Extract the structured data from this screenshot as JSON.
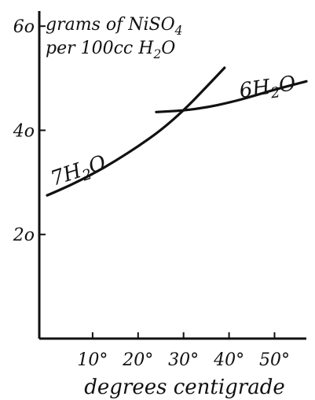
{
  "colors": {
    "ink": "#111111",
    "paper": "#ffffff"
  },
  "chart_data": {
    "type": "line",
    "title_line1": "grams of NiSO4",
    "title_line2": "per 100cc H2O",
    "xlabel": "degrees centigrade",
    "ylabel": "",
    "xlim": [
      0,
      57
    ],
    "ylim": [
      0,
      62
    ],
    "grid": false,
    "x_ticks": [
      10,
      20,
      30,
      40,
      50
    ],
    "x_tick_labels": [
      "10°",
      "20°",
      "30°",
      "40°",
      "50°"
    ],
    "y_ticks": [
      20,
      40,
      60
    ],
    "y_tick_labels": [
      "2o",
      "4o",
      "6o"
    ],
    "series": [
      {
        "name": "7H2O",
        "x": [
          0,
          5,
          10,
          15,
          20,
          25,
          30,
          35,
          39
        ],
        "y": [
          27.5,
          29.4,
          31.6,
          34.1,
          36.9,
          40.0,
          43.8,
          48.3,
          52.0
        ]
      },
      {
        "name": "6H2O",
        "x": [
          24,
          30,
          35,
          40,
          45,
          50,
          57
        ],
        "y": [
          43.5,
          43.8,
          44.4,
          45.3,
          46.5,
          47.8,
          49.4
        ]
      }
    ]
  }
}
